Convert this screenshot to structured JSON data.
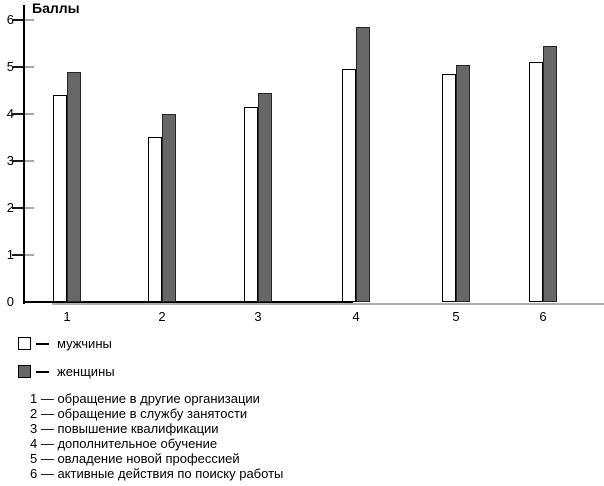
{
  "chart_data": {
    "type": "bar",
    "title": "Баллы",
    "ylabel": "Баллы",
    "xlabel": "",
    "categories": [
      "1",
      "2",
      "3",
      "4",
      "5",
      "6"
    ],
    "series": [
      {
        "key": "men",
        "name": "мужчины",
        "color": "#ffffff",
        "border": "#000000",
        "values": [
          4.4,
          3.5,
          4.15,
          4.95,
          4.85,
          5.1
        ]
      },
      {
        "key": "women",
        "name": "женщины",
        "color": "#676767",
        "border": "#262626",
        "values": [
          4.9,
          4.0,
          4.45,
          5.85,
          5.05,
          5.45
        ]
      }
    ],
    "ylim": [
      0,
      6
    ],
    "yticks": [
      0,
      1,
      2,
      3,
      4,
      5,
      6
    ],
    "grid": false,
    "legend_position": "bottom-left"
  },
  "legend": {
    "separator": "—",
    "items": [
      {
        "label": "мужчины"
      },
      {
        "label": "женщины"
      }
    ]
  },
  "footnotes": {
    "items": [
      "1 — обращение в другие организации",
      "2 — обращение в службу занятости",
      "3 — повышение квалификации",
      "4 — дополнительное обучение",
      "5 — овладение новой профессией",
      "6 — активные действия по поиску работы"
    ]
  }
}
